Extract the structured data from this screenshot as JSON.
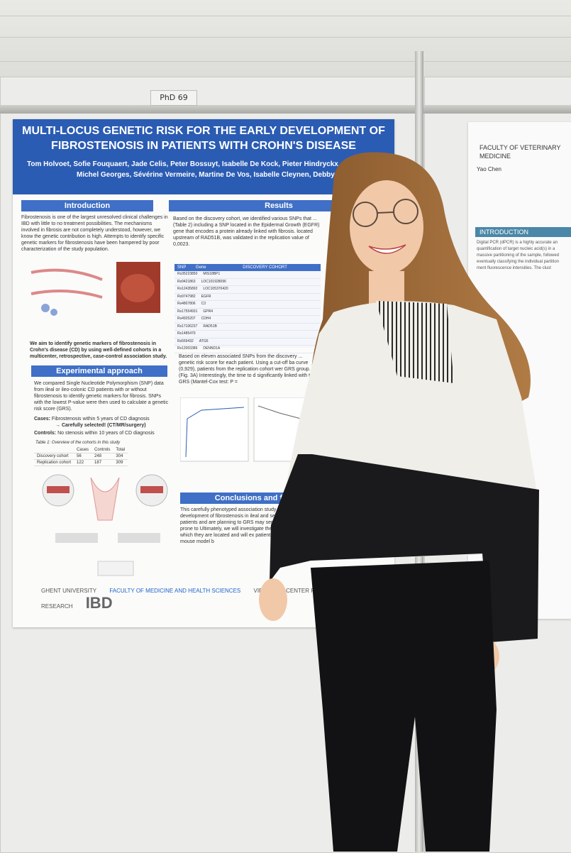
{
  "wall_tag": "PhD 69",
  "poster": {
    "title": "MULTI-LOCUS GENETIC RISK FOR THE EARLY DEVELOPMENT OF FIBROSTENOSIS IN PATIENTS WITH CROHN'S DISEASE",
    "authors_line1": "Tom Holvoet, Sofie Fouquaert, Jade Celis, Peter Bossuyt, Isabelle De Kock, Pieter Hindryckx, Edouard",
    "authors_line2": "Michel Georges, Sévérine Vermeire, Martine De Vos, Isabelle Cleynen, Debby Laukens",
    "sections": {
      "introduction": "Introduction",
      "results": "Results",
      "experimental": "Experimental approach",
      "conclusions": "Conclusions and futu"
    },
    "intro_text": "Fibrostenosis is one of the largest unresolved clinical challenges in IBD with little to no treatment possibilities. The mechanisms involved in fibrosis are not completely understood, however, we know the genetic contribution is high. Attempts to identify specific genetic markers for fibrostenosis have been hampered by poor characterization of the study population.",
    "aim_text": "We aim to identify genetic markers of fibrostenosis in Crohn's disease (CD) by using well-defined cohorts in a multicenter, retrospective, case-control association study.",
    "exp_text": "We compared Single Nucleotide Polymorphism (SNP) data from ileal or ileo-colonic CD patients with or without fibrostenosis to identify genetic markers for fibrosis. SNPs with the lowest P-value were then used to calculate a genetic risk score (GRS).",
    "cases_label": "Cases:",
    "cases_text": "Fibrostenosis within 5 years of CD diagnosis",
    "cases_sub": "→ Carefully selected! (CT/MR/surgery)",
    "controls_label": "Controls:",
    "controls_text": "No stenosis within 10 years of CD diagnosis",
    "cohort_table": {
      "caption": "Table 1: Overview of the cohorts in this study",
      "headers": [
        "",
        "Cases",
        "Controls",
        "Total"
      ],
      "rows": [
        [
          "Discovery cohort",
          "56",
          "248",
          "304"
        ],
        [
          "Replication cohort",
          "122",
          "187",
          "309"
        ]
      ]
    },
    "results_text": "Based on the discovery cohort, we identified various SNPs that ... (Table 2) including a SNP located in the Epidermal Growth (EGFR) gene that encodes a protein already linked with fibrosis. located upstream of RAD51B, was validated in the replication value of 0,0023.",
    "results_text2": "Based on eleven associated SNPs from the discovery ... genetic risk score for each patient. Using a cut-off ba curve (0,929), patients from the replication cohort wer GRS group. (Fig. 3A) Interestingly, the time to d significantly linked with the GRS (Mantel-Cox test: P =",
    "snp_table": {
      "headers": [
        "SNP",
        "Gene",
        "DISCOVERY COHORT",
        "REPLI"
      ],
      "rows": [
        [
          "Rs35223850",
          "MIS18BP1"
        ],
        [
          "Rs9421863",
          "LOC101928096"
        ],
        [
          "Rs12435892",
          "LOC105370420"
        ],
        [
          "Rs9747982",
          "EGFR"
        ],
        [
          "Rs4807806",
          "C3"
        ],
        [
          "Rs17554931",
          "GPR4"
        ],
        [
          "Rs4925207",
          "CDH4"
        ],
        [
          "Rs17106237",
          "RAD51B"
        ],
        [
          "Rs1485470",
          ""
        ],
        [
          "Rs559432",
          "ATG5"
        ],
        [
          "Rs12003386",
          "DENND1A"
        ]
      ]
    },
    "conclusion_text": "This carefully phenotyped association study alrea early development of fibrostenosis in ileal and selecting additional patients and are planning to GRS may serve to identify patients prone to Ultimately, we will investigate the influence of genes in which they are located and will ex patients' cells and in vivo in a mouse model b",
    "logos": [
      "GHENT UNIVERSITY",
      "FACULTY OF MEDICINE AND HEALTH SCIENCES",
      "VIB-UGENT CENTER FOR INFLAMMATION RESEARCH",
      "IBD"
    ]
  },
  "poster2": {
    "faculty": "FACULTY OF VETERINARY MEDICINE",
    "author": "Yao Chen",
    "intro_label": "INTRODUCTION",
    "intro_text": "Digital PCR (dPCR) is a highly accurate an quantification of target nucleic acid(s) in a massive partitioning of the sample, followed eventually classifying the individual partition ment fluorescence intensities. The clust"
  },
  "colors": {
    "poster_header": "#2b5cb3",
    "section_bar": "#3f6fc6",
    "sweater_white": "#efeee8",
    "sweater_black": "#1a1a1c"
  }
}
